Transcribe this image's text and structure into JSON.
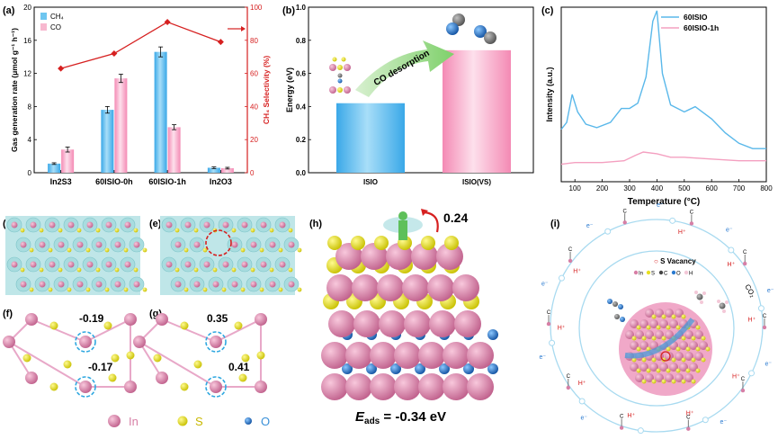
{
  "panel_labels": {
    "a": "(a)",
    "b": "(b)",
    "c": "(c)",
    "d": "(d)",
    "e": "(e)",
    "f": "(f)",
    "g": "(g)",
    "h": "(h)",
    "i": "(i)"
  },
  "colors": {
    "ch4": "#6ec6f0",
    "co": "#f7b8cf",
    "selectivity": "#d62020",
    "teal": "#9fdde0",
    "pink_atom": "#d77fa6",
    "yellow_atom": "#e8e020",
    "blue_atom": "#2a7ad0",
    "tpd_blue": "#5ab8ea",
    "tpd_pink": "#f4a0c0"
  },
  "chart_data": [
    {
      "id": "a",
      "type": "bar",
      "categories": [
        "In2S3",
        "60ISIO-0h",
        "60ISIO-1h",
        "In2O3"
      ],
      "series": [
        {
          "name": "CH4",
          "legend_label": "CH₄",
          "values": [
            1.1,
            7.6,
            14.6,
            0.6
          ],
          "errors": [
            0.1,
            0.4,
            0.6,
            0.1
          ]
        },
        {
          "name": "CO",
          "legend_label": "CO",
          "values": [
            2.8,
            11.4,
            5.5,
            0.55
          ],
          "errors": [
            0.3,
            0.5,
            0.3,
            0.1
          ]
        }
      ],
      "line": {
        "name": "CH4 Selectivity",
        "values": [
          63,
          72,
          91,
          79
        ]
      },
      "ylabel": "Gas generation rate (μmol g⁻¹ h⁻¹)",
      "y2label": "CH₄ Selectivity (%)",
      "ylim": [
        0,
        20
      ],
      "y2lim": [
        0,
        100
      ],
      "yticks": [
        "0",
        "4",
        "8",
        "12",
        "16",
        "20"
      ],
      "y2ticks": [
        "0",
        "20",
        "40",
        "60",
        "80",
        "100"
      ]
    },
    {
      "id": "b",
      "type": "bar",
      "categories": [
        "ISIO",
        "ISIO(VS)"
      ],
      "values": [
        0.42,
        0.74
      ],
      "ylabel": "Energy (eV)",
      "ylim": [
        0,
        1.0
      ],
      "yticks": [
        "0.0",
        "0.2",
        "0.4",
        "0.6",
        "0.8",
        "1.0"
      ],
      "annotation": "CO desorption"
    },
    {
      "id": "c",
      "type": "line",
      "xlabel": "Temperature (°C)",
      "ylabel": "Intensity (a.u.)",
      "xlim": [
        50,
        800
      ],
      "xticks": [
        "100",
        "200",
        "300",
        "400",
        "500",
        "600",
        "700",
        "800"
      ],
      "series": [
        {
          "name": "60ISIO",
          "x": [
            50,
            70,
            90,
            110,
            140,
            180,
            230,
            270,
            300,
            330,
            360,
            385,
            400,
            420,
            450,
            500,
            540,
            600,
            650,
            700,
            750,
            800
          ],
          "y": [
            0.3,
            0.34,
            0.5,
            0.4,
            0.33,
            0.31,
            0.34,
            0.42,
            0.42,
            0.45,
            0.6,
            0.92,
            0.98,
            0.62,
            0.44,
            0.4,
            0.43,
            0.36,
            0.28,
            0.22,
            0.19,
            0.19
          ]
        },
        {
          "name": "60ISIO-1h",
          "x": [
            50,
            100,
            200,
            280,
            320,
            350,
            400,
            450,
            500,
            600,
            700,
            800
          ],
          "y": [
            0.1,
            0.11,
            0.11,
            0.12,
            0.15,
            0.17,
            0.16,
            0.14,
            0.14,
            0.13,
            0.12,
            0.12
          ]
        }
      ]
    }
  ],
  "f": {
    "top": "-0.19",
    "bottom": "-0.17"
  },
  "g": {
    "top": "0.35",
    "bottom": "0.41"
  },
  "legend_atoms": {
    "in": "In",
    "s": "S",
    "o": "O"
  },
  "h": {
    "charge": "0.24",
    "energy_sym": "E",
    "energy_sub": "ads",
    "energy_val": " = -0.34 eV"
  },
  "i": {
    "vacancy": "S Vacancy",
    "legend": [
      "In",
      "S",
      "C",
      "O",
      "H"
    ],
    "e_labels": [
      "e⁻",
      "e⁻",
      "e⁻",
      "e⁻",
      "e⁻",
      "e⁻",
      "e⁻",
      "e⁻",
      "e⁻",
      "e⁻"
    ],
    "h_labels": [
      "H⁺",
      "H⁺",
      "H⁺",
      "H⁺",
      "H⁺",
      "H⁺",
      "H⁺",
      "H⁺",
      "H⁺"
    ],
    "co2": "CO₂"
  }
}
